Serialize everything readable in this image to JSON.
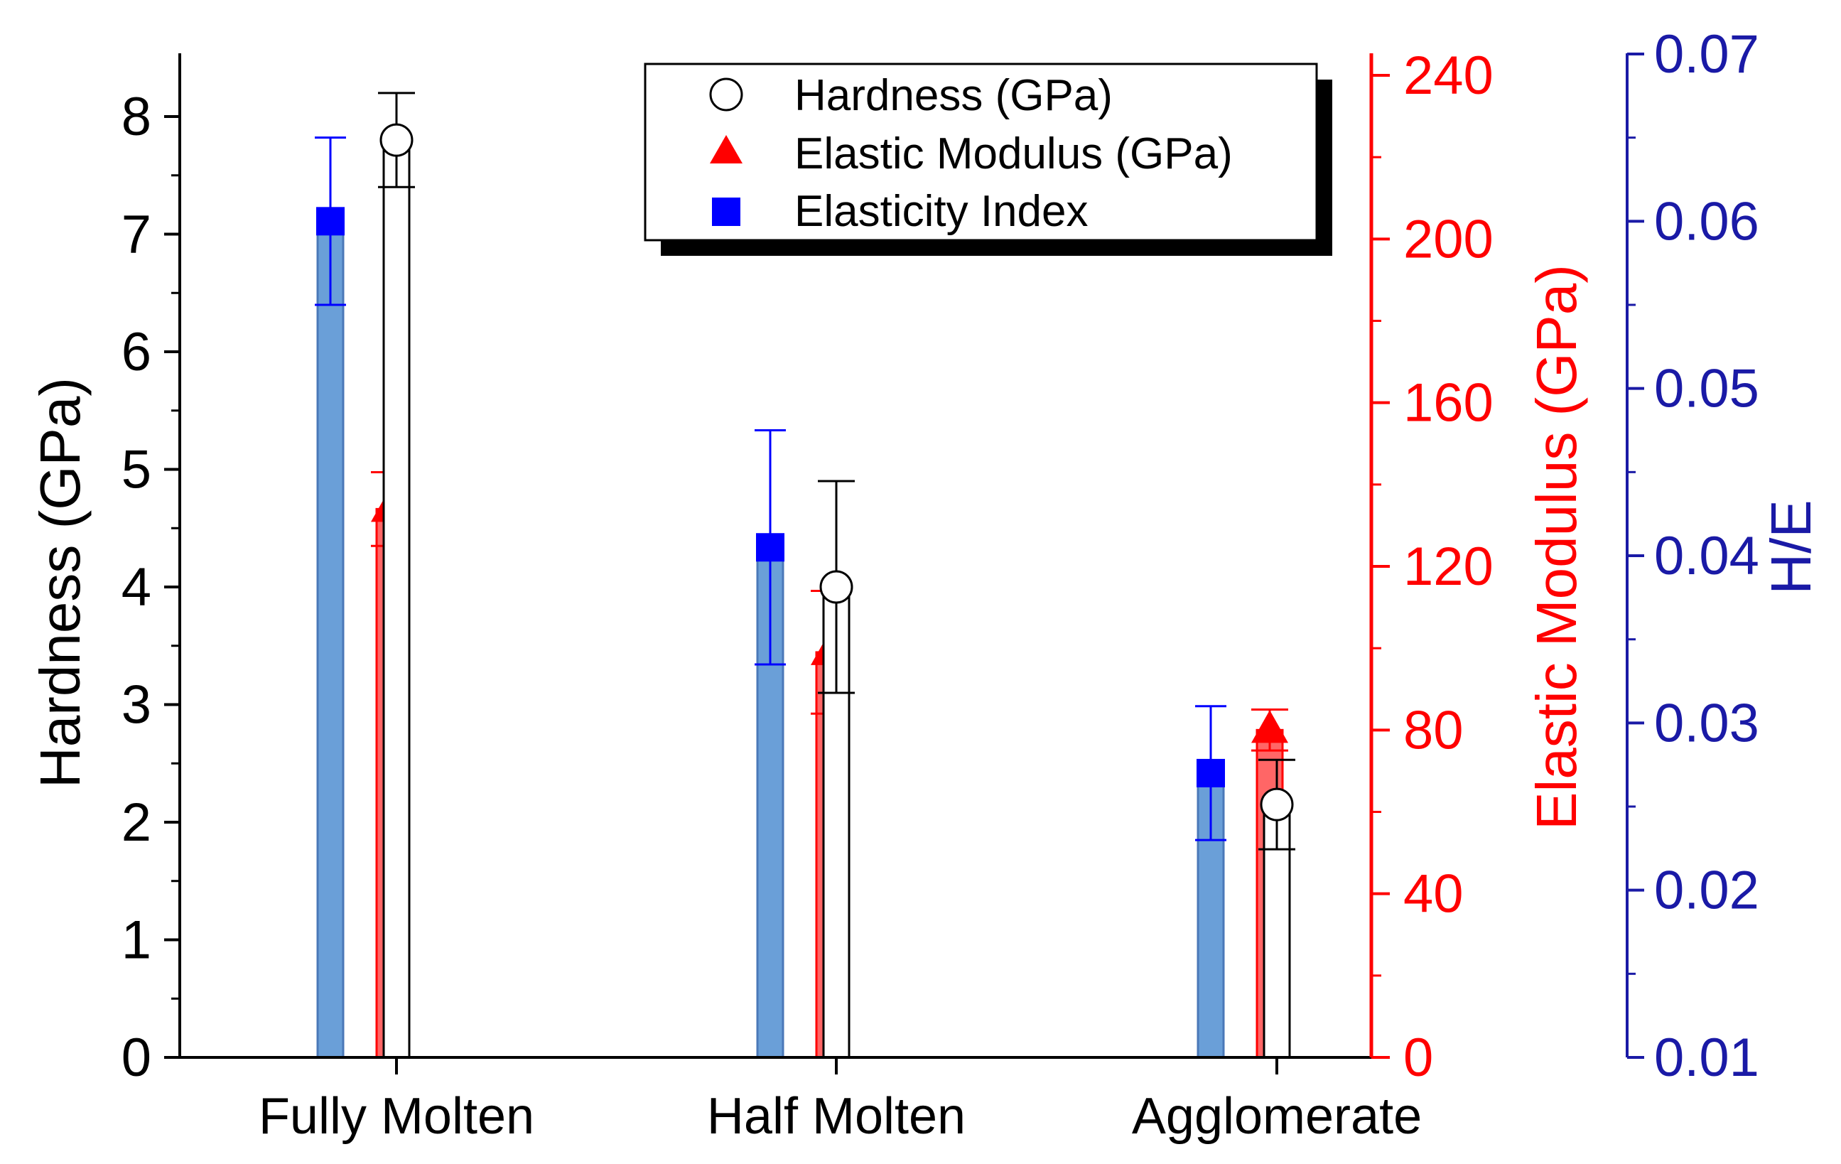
{
  "chart_data": {
    "type": "bar",
    "categories": [
      "Fully Molten",
      "Half Molten",
      "Agglomerate"
    ],
    "axes": {
      "left": {
        "label": "Hardness (GPa)",
        "ylim": [
          0,
          8.5
        ],
        "ticks": [
          0,
          1,
          2,
          3,
          4,
          5,
          6,
          7,
          8
        ],
        "color": "#000000"
      },
      "right1": {
        "label": "Elastic Modulus (GPa)",
        "ylim": [
          0,
          250
        ],
        "ticks": [
          0,
          40,
          80,
          120,
          160,
          200,
          240
        ],
        "color": "#ff0000"
      },
      "right2": {
        "label": "H/E",
        "ylim": [
          0.01,
          0.07
        ],
        "ticks": [
          "0.01",
          "0.02",
          "0.03",
          "0.04",
          "0.05",
          "0.06",
          "0.07"
        ],
        "color": "#1a1aa6"
      }
    },
    "series": [
      {
        "name": "Elasticity Index",
        "axis": "right2",
        "color": "#6a9fd8",
        "marker": "square",
        "marker_color": "#0000ff",
        "values": [
          0.06,
          0.0405,
          0.027
        ],
        "errors": [
          0.005,
          0.007,
          0.004
        ]
      },
      {
        "name": "Elastic Modulus (GPa)",
        "axis": "right1",
        "color": "#ff6666",
        "marker": "triangle",
        "marker_color": "#ff0000",
        "values": [
          134,
          99,
          80
        ],
        "errors": [
          9,
          15,
          5
        ]
      },
      {
        "name": "Hardness (GPa)",
        "axis": "left",
        "color": "#ffffff",
        "marker": "circle",
        "marker_color": "#ffffff",
        "values": [
          7.8,
          4.0,
          2.15
        ],
        "errors": [
          0.4,
          0.9,
          0.38
        ]
      }
    ],
    "legend": {
      "position": "top-center",
      "entries": [
        "Hardness (GPa)",
        "Elastic Modulus (GPa)",
        "Elasticity Index"
      ]
    }
  }
}
